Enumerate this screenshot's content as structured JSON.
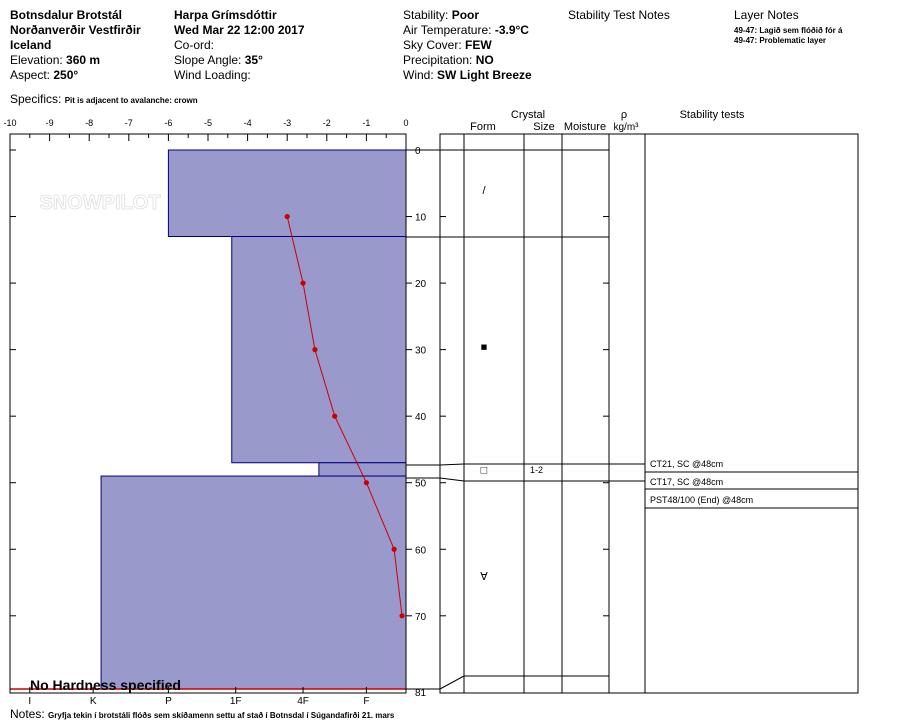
{
  "header": {
    "location_line1": "Botnsdalur Brotstál",
    "location_line2": "Norðanverðir Vestfirðir",
    "location_line3": "Iceland",
    "elevation_label": "Elevation:",
    "elevation_value": "360 m",
    "aspect_label": "Aspect:",
    "aspect_value": "250°",
    "observer": "Harpa Grímsdóttir",
    "datetime": "Wed Mar 22 12:00 2017",
    "coord_label": "Co-ord:",
    "slope_label": "Slope Angle:",
    "slope_value": "35°",
    "wind_loading_label": "Wind Loading:",
    "stability_label": "Stability:",
    "stability_value": "Poor",
    "air_temp_label": "Air Temperature:",
    "air_temp_value": "-3.9°C",
    "sky_label": "Sky Cover:",
    "sky_value": "FEW",
    "precip_label": "Precipitation:",
    "precip_value": "NO",
    "wind_label": "Wind:",
    "wind_value": "SW Light Breeze",
    "stability_test_notes_label": "Stability Test Notes",
    "layer_notes_label": "Layer Notes",
    "layer_note_1": "49-47: Lagið sem flóðið fór á",
    "layer_note_2": "49-47: Problematic layer",
    "specifics_label": "Specifics:",
    "specifics_value": "Pit is adjacent to avalanche: crown"
  },
  "columns": {
    "crystal": "Crystal",
    "form": "Form",
    "size": "Size",
    "moisture": "Moisture",
    "rho": "ρ",
    "density_unit": "kg/m³",
    "stability_tests": "Stability tests"
  },
  "watermark": "SNOWPILOT",
  "no_hardness": "No Hardness specified",
  "notes_label": "Notes:",
  "notes_value": "Gryfja tekin í brotstáli flóðs sem skíðamenn settu af stað í Botnsdal í Súgandafirði 21. mars",
  "colors": {
    "layer_fill": "#9999cc",
    "layer_edge": "#000080",
    "temp": "#cc0000"
  },
  "chart_data": {
    "type": "snow-profile",
    "temp_axis": {
      "ticks": [
        -10,
        -9,
        -8,
        -7,
        -6,
        -5,
        -4,
        -3,
        -2,
        -1,
        0
      ],
      "range": [
        -10,
        0
      ]
    },
    "depth_axis": {
      "ticks": [
        0,
        10,
        20,
        30,
        40,
        50,
        60,
        70
      ],
      "bottom_label": "81",
      "range": [
        0,
        81
      ]
    },
    "hardness_axis": {
      "labels": [
        "I",
        "K",
        "P",
        "1F",
        "4F",
        "F"
      ],
      "positions": [
        -9.5,
        -7.9,
        -6,
        -4.3,
        -2.6,
        -1
      ]
    },
    "layers": [
      {
        "top": 0,
        "bottom": 13,
        "hardness": -6.0
      },
      {
        "top": 13,
        "bottom": 47,
        "hardness": -4.4
      },
      {
        "top": 47,
        "bottom": 49,
        "hardness": -2.2
      },
      {
        "top": 49,
        "bottom": 81,
        "hardness": -7.7
      }
    ],
    "temperatures": [
      {
        "depth": 10,
        "temp": -3.0
      },
      {
        "depth": 20,
        "temp": -2.6
      },
      {
        "depth": 30,
        "temp": -2.3
      },
      {
        "depth": 40,
        "temp": -1.8
      },
      {
        "depth": 50,
        "temp": -1.0
      },
      {
        "depth": 60,
        "temp": -0.3
      },
      {
        "depth": 70,
        "temp": -0.1
      }
    ],
    "grain_symbols": [
      {
        "depth": 6,
        "symbol": "/"
      },
      {
        "depth": 29.5,
        "symbol": "■"
      },
      {
        "depth": 48,
        "symbol": "□"
      },
      {
        "depth": 64,
        "symbol": "∀"
      }
    ],
    "size_entries": [
      {
        "depth": 48,
        "value": "1-2"
      }
    ],
    "stability_tests": [
      "CT21, SC @48cm",
      "CT17, SC @48cm",
      "PST48/100 (End) @48cm"
    ]
  }
}
